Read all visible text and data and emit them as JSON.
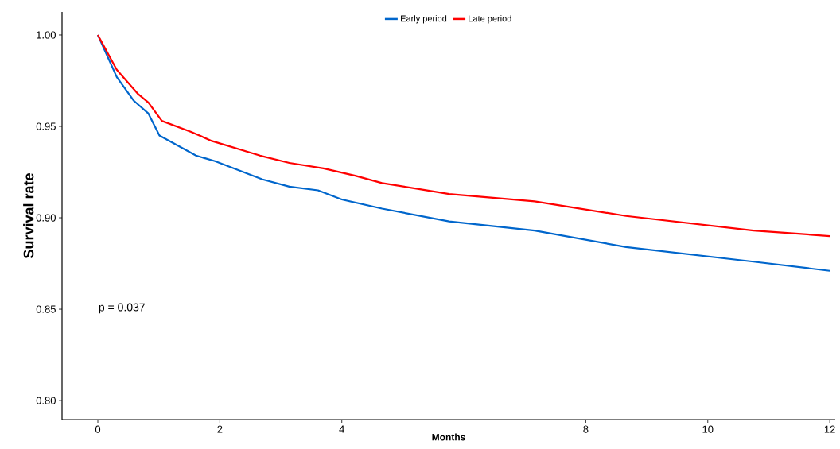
{
  "chart_data": {
    "type": "line",
    "xlabel": "Months",
    "ylabel": "Survival rate",
    "xlim": [
      -0.587,
      12.09
    ],
    "ylim": [
      0.7896,
      1.0126
    ],
    "xticks": [
      0,
      2,
      4,
      8,
      10,
      12
    ],
    "yticks": [
      {
        "value": 0.8,
        "label": "0.80"
      },
      {
        "value": 0.85,
        "label": "0.85"
      },
      {
        "value": 0.9,
        "label": "0.90"
      },
      {
        "value": 0.95,
        "label": "0.95"
      },
      {
        "value": 1.0,
        "label": "1.00"
      }
    ],
    "legend": "top",
    "annotations": [
      "p = 0.037"
    ],
    "series": [
      {
        "name": "Early period",
        "color": "#0066cc",
        "x": [
          0,
          0.31,
          0.59,
          0.83,
          1.01,
          1.61,
          1.92,
          2.7,
          3.14,
          3.61,
          4.0,
          4.66,
          5.76,
          7.16,
          8.66,
          10.75,
          12
        ],
        "values": [
          1.0,
          0.977,
          0.964,
          0.957,
          0.945,
          0.934,
          0.931,
          0.921,
          0.917,
          0.915,
          0.91,
          0.905,
          0.898,
          0.893,
          0.884,
          0.876,
          0.871
        ]
      },
      {
        "name": "Late period",
        "color": "#ff0000",
        "x": [
          0,
          0.31,
          0.65,
          0.83,
          1.05,
          1.53,
          1.87,
          2.66,
          3.14,
          3.7,
          4.22,
          4.66,
          5.76,
          7.16,
          8.66,
          10.75,
          12
        ],
        "values": [
          1.0,
          0.981,
          0.968,
          0.963,
          0.953,
          0.947,
          0.942,
          0.934,
          0.93,
          0.927,
          0.923,
          0.919,
          0.913,
          0.909,
          0.901,
          0.893,
          0.89
        ]
      }
    ]
  }
}
